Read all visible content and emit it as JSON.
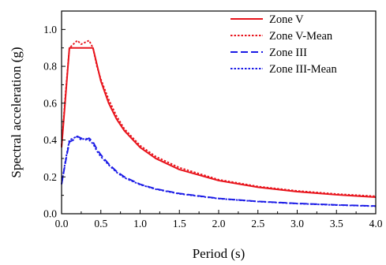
{
  "chart_data": {
    "type": "line",
    "title": "",
    "xlabel": "Period (s)",
    "ylabel": "Spectral acceleration (g)",
    "xlim": [
      0,
      4.0
    ],
    "ylim": [
      0,
      1.1
    ],
    "xticks": [
      "0.0",
      "0.5",
      "1.0",
      "1.5",
      "2.0",
      "2.5",
      "3.0",
      "3.5",
      "4.0"
    ],
    "yticks": [
      "0.0",
      "0.2",
      "0.4",
      "0.6",
      "0.8",
      "1.0"
    ],
    "grid": false,
    "legend_position": "top-right",
    "series": [
      {
        "name": "Zone V",
        "color": "#e8141c",
        "style": "solid",
        "x": [
          0,
          0.1,
          0.4,
          0.5,
          0.6,
          0.7,
          0.8,
          1.0,
          1.2,
          1.5,
          2.0,
          2.5,
          3.0,
          3.5,
          4.0
        ],
        "y": [
          0.36,
          0.9,
          0.9,
          0.72,
          0.6,
          0.514,
          0.45,
          0.36,
          0.3,
          0.24,
          0.18,
          0.144,
          0.12,
          0.103,
          0.09
        ]
      },
      {
        "name": "Zone V-Mean",
        "color": "#e8141c",
        "style": "dotted",
        "x": [
          0,
          0.05,
          0.1,
          0.15,
          0.2,
          0.25,
          0.3,
          0.35,
          0.4,
          0.45,
          0.5,
          0.6,
          0.7,
          0.8,
          1.0,
          1.2,
          1.5,
          2.0,
          2.5,
          3.0,
          3.5,
          4.0
        ],
        "y": [
          0.37,
          0.65,
          0.9,
          0.92,
          0.94,
          0.92,
          0.93,
          0.94,
          0.9,
          0.8,
          0.73,
          0.62,
          0.53,
          0.46,
          0.37,
          0.31,
          0.25,
          0.185,
          0.148,
          0.124,
          0.107,
          0.095
        ]
      },
      {
        "name": "Zone III",
        "color": "#1a1ae6",
        "style": "dashed",
        "x": [
          0,
          0.05,
          0.1,
          0.15,
          0.2,
          0.25,
          0.3,
          0.35,
          0.4,
          0.45,
          0.5,
          0.6,
          0.7,
          0.8,
          1.0,
          1.2,
          1.5,
          2.0,
          2.5,
          3.0,
          3.5,
          4.0
        ],
        "y": [
          0.16,
          0.28,
          0.39,
          0.4,
          0.42,
          0.41,
          0.4,
          0.41,
          0.39,
          0.35,
          0.32,
          0.27,
          0.23,
          0.2,
          0.16,
          0.135,
          0.11,
          0.083,
          0.067,
          0.056,
          0.048,
          0.042
        ]
      },
      {
        "name": "Zone III-Mean",
        "color": "#1a1ae6",
        "style": "dotted",
        "x": [
          0,
          0.05,
          0.1,
          0.15,
          0.2,
          0.25,
          0.3,
          0.35,
          0.4,
          0.45,
          0.5,
          0.6,
          0.7,
          0.8,
          1.0,
          1.2,
          1.5,
          2.0,
          2.5,
          3.0,
          3.5,
          4.0
        ],
        "y": [
          0.16,
          0.29,
          0.4,
          0.41,
          0.42,
          0.4,
          0.41,
          0.4,
          0.38,
          0.34,
          0.31,
          0.265,
          0.225,
          0.195,
          0.158,
          0.133,
          0.108,
          0.082,
          0.066,
          0.055,
          0.047,
          0.041
        ]
      }
    ]
  }
}
